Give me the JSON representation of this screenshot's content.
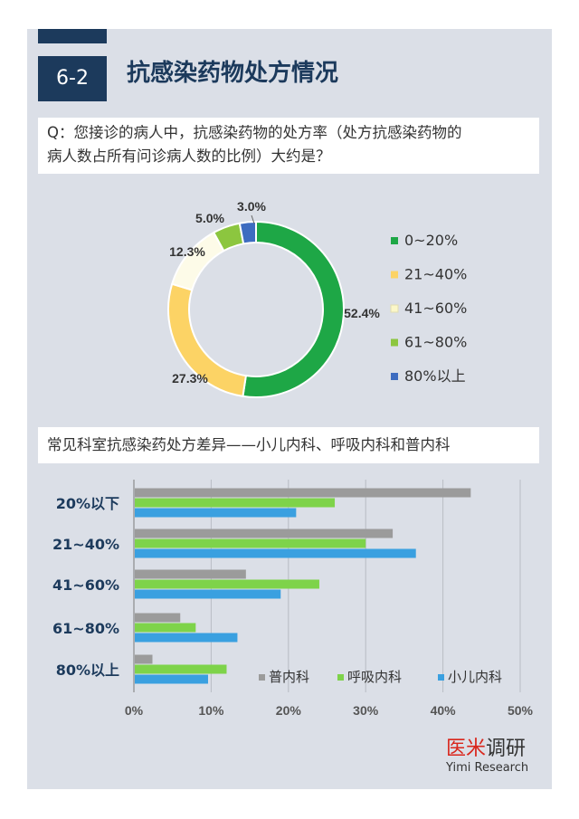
{
  "header": {
    "badge": "6-2",
    "title": "抗感染药物处方情况"
  },
  "question1": {
    "line1": "Q：您接诊的病人中，抗感染药物的处方率（处方抗感染药物的",
    "line2": "病人数占所有问诊病人数的比例）大约是？"
  },
  "question2": {
    "text": "常见科室抗感染药处方差异——小儿内科、呼吸内科和普内科"
  },
  "brand": {
    "name_red": "医米",
    "name_dark": "调研",
    "sub": "Yimi Research"
  },
  "colors": {
    "navy": "#1c3a5c",
    "green": "#1ea746",
    "yellow": "#fcd365",
    "cream": "#fdfbe8",
    "lightgreen": "#8cc63f",
    "blue": "#3d6cc0",
    "gray": "#9b9b9b",
    "bargreen": "#7ed34a",
    "barblue": "#3aa0e0",
    "red": "#d9261c"
  },
  "chart_data": [
    {
      "type": "pie",
      "title": "",
      "categories": [
        "0~20%",
        "21~40%",
        "41~60%",
        "61~80%",
        "80%以上"
      ],
      "values": [
        52.4,
        27.3,
        12.3,
        5.0,
        3.0
      ],
      "labels": [
        "52.4%",
        "27.3%",
        "12.3%",
        "5.0%",
        "3.0%"
      ],
      "legend": "right"
    },
    {
      "type": "bar",
      "orientation": "horizontal",
      "categories": [
        "20%以下",
        "21~40%",
        "41~60%",
        "61~80%",
        "80%以上"
      ],
      "series": [
        {
          "name": "普内科",
          "values": [
            43.6,
            33.5,
            14.5,
            6.0,
            2.4
          ]
        },
        {
          "name": "呼吸内科",
          "values": [
            26.0,
            30.0,
            24.0,
            8.0,
            12.0
          ]
        },
        {
          "name": "小儿内科",
          "values": [
            21.0,
            36.5,
            19.0,
            13.4,
            9.6
          ]
        }
      ],
      "xlim": [
        0,
        50
      ],
      "xticks": [
        "0%",
        "10%",
        "20%",
        "30%",
        "40%",
        "50%"
      ],
      "grid": true,
      "legend": "bottom-right"
    }
  ]
}
